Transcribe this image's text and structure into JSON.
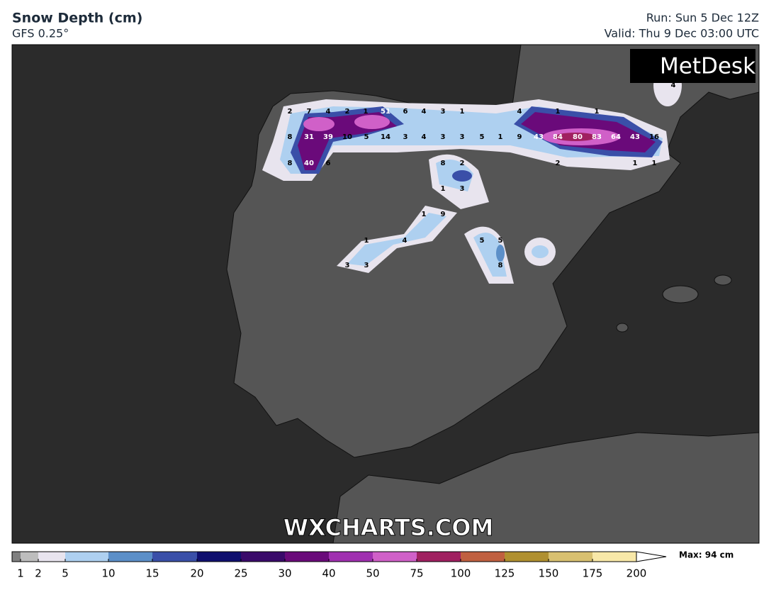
{
  "header": {
    "title": "Snow Depth (cm)",
    "model": "GFS 0.25°",
    "run": "Run: Sun 5 Dec 12Z",
    "valid": "Valid: Thu 9 Dec 03:00 UTC"
  },
  "logo": "MetDesk",
  "watermark": "WXCHARTS.COM",
  "legend": {
    "ticks": [
      1,
      2,
      5,
      10,
      15,
      20,
      25,
      30,
      40,
      50,
      75,
      100,
      125,
      150,
      175,
      200
    ],
    "max": "Max: 94 cm"
  },
  "map": {
    "labels": [
      2,
      7,
      4,
      2,
      1,
      51,
      6,
      4,
      3,
      1,
      4,
      1,
      1,
      8,
      31,
      39,
      10,
      5,
      14,
      3,
      4,
      3,
      3,
      5,
      1,
      9,
      43,
      84,
      80,
      83,
      64,
      43,
      16,
      8,
      40,
      6,
      8,
      2,
      2,
      1,
      1,
      1,
      3,
      1,
      9,
      1,
      4,
      5,
      5,
      3,
      3,
      8,
      4
    ]
  }
}
